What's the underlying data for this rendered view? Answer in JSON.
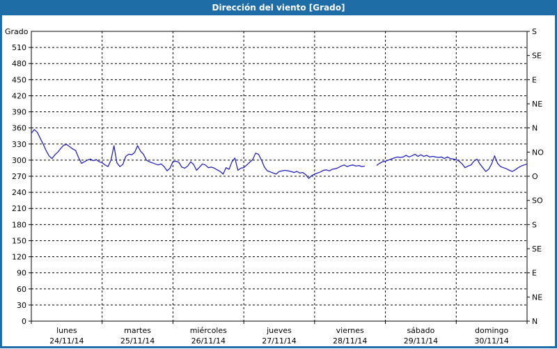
{
  "title": "Dirección del viento [Grado]",
  "colors": {
    "titlebar": "#1e6da7",
    "frame": "#1e6da7",
    "background": "#ffffff",
    "line": "#2323bb",
    "grid": "#000000",
    "text": "#000000"
  },
  "chart_data": {
    "type": "line",
    "title": "Dirección del viento [Grado]",
    "ylabel": "Grado",
    "ylim": [
      0,
      540
    ],
    "y_tick_step": 30,
    "y_tick_values": [
      0,
      30,
      60,
      90,
      120,
      150,
      180,
      210,
      240,
      270,
      300,
      330,
      360,
      390,
      420,
      450,
      480,
      510
    ],
    "grid": true,
    "legend_position": "none",
    "right_axis": {
      "values": [
        540,
        495,
        450,
        405,
        360,
        315,
        270,
        225,
        180,
        135,
        90,
        45,
        0
      ],
      "labels": [
        "S",
        "SE",
        "E",
        "NE",
        "N",
        "NO",
        "O",
        "SO",
        "S",
        "SE",
        "E",
        "NE",
        "N"
      ]
    },
    "x_days": [
      {
        "name": "lunes",
        "date": "24/11/14"
      },
      {
        "name": "martes",
        "date": "25/11/14"
      },
      {
        "name": "miércoles",
        "date": "26/11/14"
      },
      {
        "name": "jueves",
        "date": "27/11/14"
      },
      {
        "name": "viernes",
        "date": "28/11/14"
      },
      {
        "name": "sábado",
        "date": "29/11/14"
      },
      {
        "name": "domingo",
        "date": "30/11/14"
      }
    ],
    "series": [
      {
        "name": "Dirección del viento",
        "unit": "Grado",
        "x_unit": "hours from 24/11/14 00:00",
        "values": [
          350,
          357,
          352,
          341,
          330,
          318,
          308,
          303,
          310,
          315,
          322,
          328,
          329,
          325,
          321,
          318,
          305,
          294,
          297,
          300,
          302,
          299,
          301,
          297,
          295,
          291,
          288,
          300,
          327,
          295,
          288,
          292,
          307,
          311,
          310,
          314,
          327,
          317,
          311,
          300,
          297,
          295,
          293,
          291,
          293,
          288,
          280,
          285,
          297,
          298,
          296,
          287,
          285,
          289,
          297,
          292,
          281,
          287,
          293,
          291,
          286,
          287,
          285,
          282,
          279,
          274,
          286,
          283,
          297,
          304,
          281,
          285,
          286,
          291,
          296,
          301,
          313,
          311,
          300,
          287,
          280,
          278,
          276,
          274,
          279,
          280,
          281,
          280,
          279,
          277,
          279,
          276,
          277,
          273,
          266,
          271,
          274,
          276,
          278,
          281,
          282,
          280,
          283,
          284,
          286,
          289,
          291,
          288,
          290,
          291,
          289,
          290,
          288,
          289,
          null,
          null,
          null,
          290,
          294,
          297,
          298,
          300,
          302,
          304,
          306,
          305,
          306,
          309,
          306,
          308,
          311,
          307,
          310,
          307,
          309,
          306,
          307,
          306,
          305,
          306,
          303,
          306,
          303,
          302,
          301,
          298,
          293,
          286,
          289,
          291,
          298,
          302,
          293,
          286,
          279,
          283,
          293,
          308,
          294,
          288,
          286,
          284,
          281,
          279,
          282,
          286,
          289,
          291,
          293
        ]
      }
    ]
  }
}
